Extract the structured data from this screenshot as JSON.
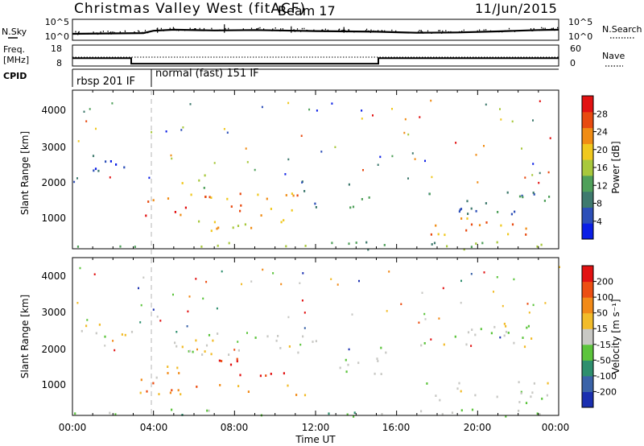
{
  "header": {
    "station": "Christmas Valley West (fitACF)",
    "beam": "Beam 17",
    "date": "11/Jun/2015"
  },
  "nsky_panel": {
    "left_label": "N.Sky",
    "right_label": "N.Search",
    "left_ticks": [
      "10^5",
      "10^0"
    ],
    "right_ticks": [
      "10^5",
      "10^0"
    ]
  },
  "freq_panel": {
    "left_label_1": "Freq.",
    "left_label_2": "[MHz]",
    "right_label": "Nave",
    "left_ticks": [
      "18",
      "8"
    ],
    "right_ticks": [
      "60",
      "0"
    ]
  },
  "cpid_panel": {
    "label": "CPID",
    "modes": [
      {
        "name": "rbsp 201 IF",
        "start_hour": 0
      },
      {
        "name": "normal (fast) 151 IF",
        "start_hour": 3.9
      }
    ]
  },
  "x_axis": {
    "label": "Time UT",
    "ticks": [
      "00:00",
      "04:00",
      "08:00",
      "12:00",
      "16:00",
      "20:00",
      "00:00"
    ]
  },
  "power_panel": {
    "ylabel": "Slant Range [km]",
    "yticks": [
      "1000",
      "2000",
      "3000",
      "4000"
    ],
    "colorbar_label": "Power [dB]",
    "colorbar_ticks": [
      "4",
      "8",
      "12",
      "16",
      "20",
      "24",
      "28"
    ],
    "colors": [
      "#0a1ee6",
      "#2d4fb8",
      "#3f7a6e",
      "#4fa05a",
      "#a8c83c",
      "#f0c81e",
      "#f08c14",
      "#e84a10",
      "#e21212"
    ]
  },
  "velocity_panel": {
    "ylabel": "Slant Range [km]",
    "yticks": [
      "1000",
      "2000",
      "3000",
      "4000"
    ],
    "colorbar_label": "Velocity [m s⁻¹]",
    "colorbar_ticks": [
      "200",
      "100",
      "50",
      "15",
      "-15",
      "-50",
      "-100",
      "-200"
    ],
    "colors": [
      "#1a2fb0",
      "#3a63a8",
      "#2e8f6e",
      "#5cc43c",
      "#c8c8c4",
      "#f2bc2a",
      "#f28a18",
      "#ec4e12",
      "#e21212"
    ]
  },
  "chart_data": {
    "type": "heatmap",
    "x_range_hours": [
      0,
      24
    ],
    "y_range_km": [
      180,
      4600
    ],
    "nsky_trace": [
      [
        0,
        1.2
      ],
      [
        2,
        1.3
      ],
      [
        3.5,
        1.4
      ],
      [
        4,
        2.1
      ],
      [
        5,
        2.4
      ],
      [
        7,
        2.2
      ],
      [
        9,
        2.3
      ],
      [
        12,
        2.0
      ],
      [
        15,
        1.8
      ],
      [
        17,
        1.5
      ],
      [
        19,
        1.6
      ],
      [
        21,
        1.9
      ],
      [
        23,
        2.3
      ],
      [
        24,
        2.4
      ]
    ],
    "freq_mhz": [
      [
        0,
        13.4
      ],
      [
        2.9,
        13.4
      ],
      [
        2.9,
        9.6
      ],
      [
        15.1,
        9.6
      ],
      [
        15.1,
        13.4
      ],
      [
        24,
        13.4
      ]
    ],
    "power_regions": [
      {
        "t0": 0.2,
        "t1": 3.0,
        "r0": 2200,
        "r1": 2800,
        "level": 1
      },
      {
        "t0": 0.3,
        "t1": 0.7,
        "r0": 1150,
        "r1": 1350,
        "level": 1
      },
      {
        "t0": 2.9,
        "t1": 5.6,
        "r0": 1100,
        "r1": 1650,
        "level": 7
      },
      {
        "t0": 5.0,
        "t1": 7.0,
        "r0": 1900,
        "r1": 2300,
        "level": 4
      },
      {
        "t0": 5.5,
        "t1": 12.0,
        "r0": 1200,
        "r1": 1800,
        "level": 6
      },
      {
        "t0": 5.5,
        "t1": 11.5,
        "r0": 700,
        "r1": 1150,
        "level": 5
      },
      {
        "t0": 11.0,
        "t1": 12.0,
        "r0": 1200,
        "r1": 2100,
        "level": 2
      },
      {
        "t0": 13.5,
        "t1": 15.0,
        "r0": 1300,
        "r1": 2100,
        "level": 3
      },
      {
        "t0": 16.5,
        "t1": 22.5,
        "r0": 550,
        "r1": 1100,
        "level": 6
      },
      {
        "t0": 17.0,
        "t1": 24.0,
        "r0": 1150,
        "r1": 1800,
        "level": 2
      },
      {
        "t0": 0.0,
        "t1": 24.0,
        "r0": 180,
        "r1": 400,
        "level": 3
      }
    ],
    "velocity_regions": [
      {
        "t0": 0.2,
        "t1": 3.0,
        "r0": 2200,
        "r1": 2800,
        "level": 4
      },
      {
        "t0": 2.9,
        "t1": 5.6,
        "r0": 1150,
        "r1": 1650,
        "level": 5
      },
      {
        "t0": 5.0,
        "t1": 7.0,
        "r0": 1900,
        "r1": 2350,
        "level": 5
      },
      {
        "t0": 7.0,
        "t1": 11.0,
        "r0": 1250,
        "r1": 1800,
        "level": 8
      },
      {
        "t0": 3.0,
        "t1": 11.5,
        "r0": 750,
        "r1": 1150,
        "level": 6
      },
      {
        "t0": 5.0,
        "t1": 12.0,
        "r0": 1900,
        "r1": 2600,
        "level": 4
      },
      {
        "t0": 13.0,
        "t1": 15.5,
        "r0": 1300,
        "r1": 2300,
        "level": 3
      },
      {
        "t0": 16.5,
        "t1": 23.5,
        "r0": 550,
        "r1": 1150,
        "level": 4
      },
      {
        "t0": 17.0,
        "t1": 24.0,
        "r0": 2100,
        "r1": 2800,
        "level": 4
      },
      {
        "t0": 0.0,
        "t1": 24.0,
        "r0": 180,
        "r1": 380,
        "level": 3
      }
    ]
  }
}
